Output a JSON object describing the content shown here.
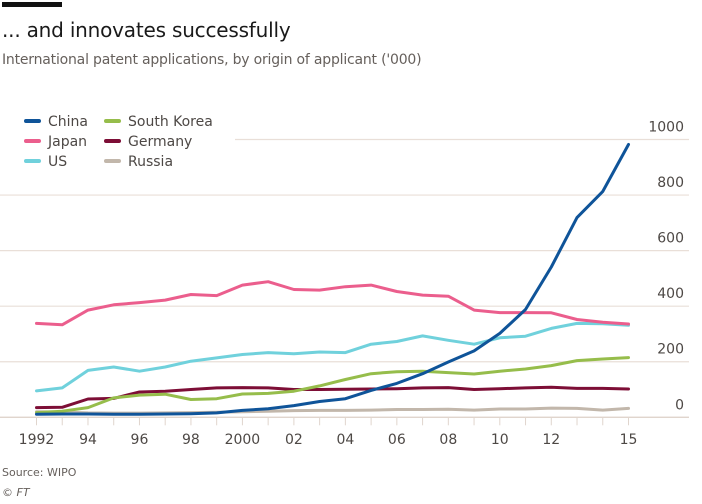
{
  "header": {
    "title": "... and innovates successfully",
    "subtitle": "International patent applications, by origin of applicant ('000)"
  },
  "footer": {
    "source": "Source: WIPO",
    "copyright": "© FT"
  },
  "chart_data": {
    "type": "line",
    "title": "... and innovates successfully",
    "subtitle": "International patent applications, by origin of applicant ('000)",
    "xlabel": "",
    "ylabel": "",
    "x": [
      1992,
      1993,
      1994,
      1995,
      1996,
      1997,
      1998,
      1999,
      2000,
      2001,
      2002,
      2003,
      2004,
      2005,
      2006,
      2007,
      2008,
      2009,
      2010,
      2011,
      2012,
      2013,
      2014,
      2015
    ],
    "xlim": [
      1992,
      2015
    ],
    "ylim": [
      0,
      1000
    ],
    "x_tick_values": [
      1992,
      1994,
      1996,
      1998,
      2000,
      2002,
      2004,
      2006,
      2008,
      2010,
      2012,
      2015
    ],
    "x_tick_labels": [
      "1992",
      "94",
      "96",
      "98",
      "2000",
      "02",
      "04",
      "06",
      "08",
      "10",
      "12",
      "15"
    ],
    "y_tick_values": [
      0,
      200,
      400,
      600,
      800,
      1000
    ],
    "y_tick_labels": [
      "0",
      "200",
      "400",
      "600",
      "800",
      "1000"
    ],
    "y_axis_side": "right",
    "grid": true,
    "legend_position": "top-left",
    "series": [
      {
        "name": "China",
        "color": "#0f5499",
        "values": [
          11,
          12,
          12,
          11,
          11,
          12,
          13,
          16,
          25,
          31,
          42,
          57,
          67,
          97,
          122,
          157,
          199,
          239,
          302,
          388,
          541,
          719,
          813,
          982
        ]
      },
      {
        "name": "Japan",
        "color": "#eb5e8d",
        "values": [
          338,
          333,
          386,
          405,
          413,
          422,
          442,
          438,
          476,
          488,
          460,
          458,
          470,
          476,
          453,
          440,
          436,
          386,
          377,
          377,
          376,
          352,
          342,
          336
        ]
      },
      {
        "name": "US",
        "color": "#70d1dc",
        "values": [
          95,
          106,
          169,
          181,
          166,
          181,
          202,
          214,
          226,
          233,
          229,
          235,
          233,
          263,
          273,
          293,
          277,
          263,
          286,
          292,
          320,
          338,
          337,
          331
        ]
      },
      {
        "name": "South Korea",
        "color": "#96bd4b",
        "values": [
          17,
          22,
          35,
          70,
          80,
          83,
          64,
          67,
          84,
          86,
          94,
          113,
          136,
          157,
          164,
          166,
          161,
          156,
          166,
          174,
          186,
          204,
          210,
          215
        ]
      },
      {
        "name": "Germany",
        "color": "#7d0e36",
        "values": [
          35,
          36,
          66,
          68,
          91,
          94,
          100,
          106,
          107,
          106,
          100,
          100,
          101,
          102,
          103,
          106,
          107,
          100,
          103,
          106,
          108,
          104,
          104,
          102
        ]
      },
      {
        "name": "Russia",
        "color": "#c2b7ab",
        "values": [
          20,
          19,
          16,
          15,
          15,
          16,
          17,
          18,
          20,
          22,
          24,
          25,
          25,
          26,
          28,
          28,
          29,
          26,
          30,
          30,
          33,
          32,
          26,
          32
        ]
      }
    ],
    "legend_order": [
      "China",
      "Japan",
      "US",
      "South Korea",
      "Germany",
      "Russia"
    ]
  }
}
